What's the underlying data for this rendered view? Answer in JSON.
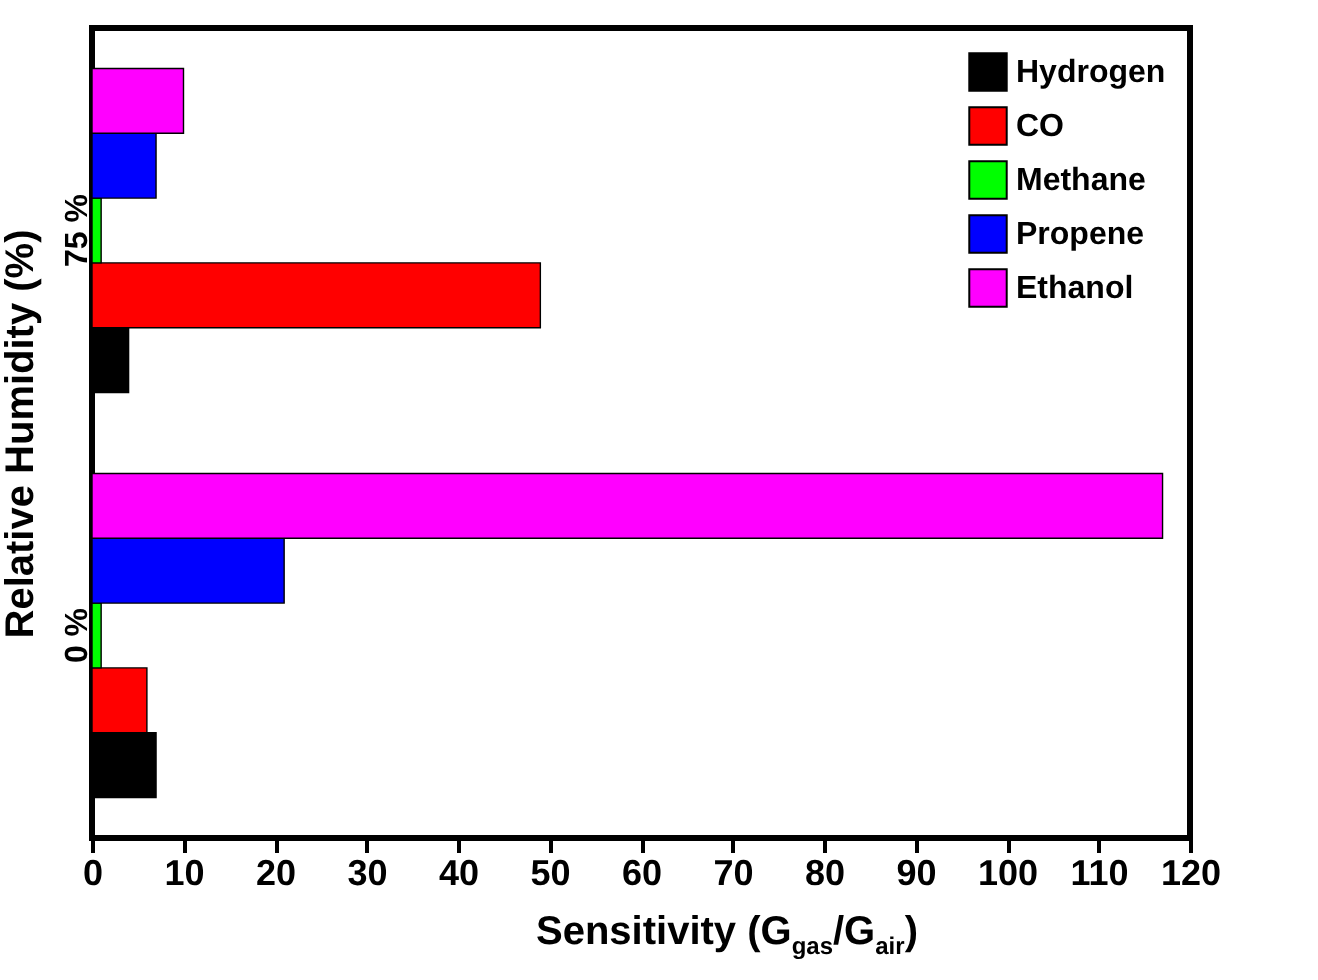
{
  "chart_data": {
    "type": "bar",
    "orientation": "horizontal",
    "xlabel": "Sensitivity (G$_{gas}$/G$_{air}$)",
    "ylabel": "Relative Humidity (%)",
    "categories": [
      "75 %",
      "0 %"
    ],
    "series": [
      {
        "name": "Hydrogen",
        "color": "#000000",
        "values": [
          4,
          7
        ]
      },
      {
        "name": "CO",
        "color": "#ff0000",
        "values": [
          49,
          6
        ]
      },
      {
        "name": "Methane",
        "color": "#00ff00",
        "values": [
          1,
          1
        ]
      },
      {
        "name": "Propene",
        "color": "#0000ff",
        "values": [
          7,
          21
        ]
      },
      {
        "name": "Ethanol",
        "color": "#ff00ff",
        "values": [
          10,
          117
        ]
      }
    ],
    "xlim": [
      0,
      120
    ],
    "xticks": [
      0,
      10,
      20,
      30,
      40,
      50,
      60,
      70,
      80,
      90,
      100,
      110,
      120
    ],
    "grid": false,
    "legend": "top right"
  }
}
